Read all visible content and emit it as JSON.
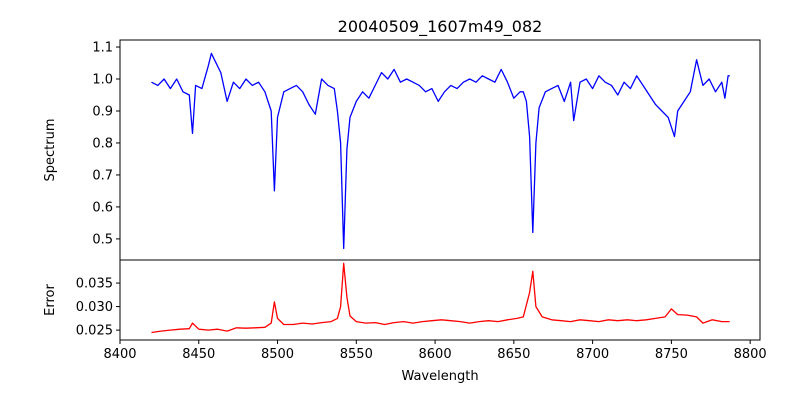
{
  "chart_data": [
    {
      "type": "line",
      "title": "20040509_1607m49_082",
      "xlabel": "",
      "ylabel": "Spectrum",
      "xlim": [
        8400,
        8806.25
      ],
      "ylim": [
        0.434,
        1.122
      ],
      "yticks": [
        0.5,
        0.6,
        0.7,
        0.8,
        0.9,
        1.0,
        1.1
      ],
      "ytick_labels": [
        "0.5",
        "0.6",
        "0.7",
        "0.8",
        "0.9",
        "1.0",
        "1.1"
      ],
      "grid": false,
      "color": "#0000ff",
      "series": [
        {
          "name": "Spectrum",
          "x": [
            8420,
            8424,
            8428,
            8432,
            8436,
            8440,
            8444,
            8446,
            8448,
            8452,
            8456,
            8458,
            8460,
            8464,
            8468,
            8472,
            8476,
            8480,
            8484,
            8488,
            8492,
            8496,
            8498,
            8500,
            8504,
            8508,
            8512,
            8516,
            8520,
            8524,
            8528,
            8532,
            8536,
            8538,
            8540,
            8542,
            8544,
            8546,
            8550,
            8554,
            8558,
            8562,
            8566,
            8570,
            8574,
            8578,
            8582,
            8586,
            8590,
            8594,
            8598,
            8602,
            8606,
            8610,
            8614,
            8618,
            8622,
            8626,
            8630,
            8634,
            8638,
            8642,
            8646,
            8650,
            8654,
            8656,
            8658,
            8660,
            8662,
            8664,
            8666,
            8670,
            8674,
            8678,
            8682,
            8686,
            8688,
            8692,
            8696,
            8700,
            8704,
            8708,
            8712,
            8716,
            8720,
            8724,
            8728,
            8732,
            8736,
            8740,
            8744,
            8748,
            8752,
            8754,
            8758,
            8762,
            8766,
            8770,
            8774,
            8778,
            8782,
            8784,
            8786,
            8787
          ],
          "y": [
            0.99,
            0.98,
            1.0,
            0.97,
            1.0,
            0.96,
            0.95,
            0.83,
            0.98,
            0.97,
            1.04,
            1.08,
            1.06,
            1.02,
            0.93,
            0.99,
            0.97,
            1.0,
            0.98,
            0.99,
            0.96,
            0.9,
            0.65,
            0.88,
            0.96,
            0.97,
            0.98,
            0.96,
            0.92,
            0.89,
            1.0,
            0.98,
            0.97,
            0.9,
            0.8,
            0.47,
            0.78,
            0.88,
            0.93,
            0.96,
            0.94,
            0.98,
            1.02,
            1.0,
            1.03,
            0.99,
            1.0,
            0.99,
            0.98,
            0.96,
            0.97,
            0.93,
            0.96,
            0.98,
            0.97,
            0.99,
            1.0,
            0.99,
            1.01,
            1.0,
            0.99,
            1.03,
            0.99,
            0.94,
            0.96,
            0.96,
            0.93,
            0.82,
            0.52,
            0.8,
            0.91,
            0.96,
            0.97,
            0.98,
            0.93,
            0.99,
            0.87,
            0.99,
            1.0,
            0.97,
            1.01,
            0.99,
            0.98,
            0.95,
            0.99,
            0.97,
            1.01,
            0.98,
            0.95,
            0.92,
            0.9,
            0.88,
            0.82,
            0.9,
            0.93,
            0.96,
            1.06,
            0.98,
            1.0,
            0.96,
            0.99,
            0.94,
            1.01,
            1.01
          ]
        }
      ]
    },
    {
      "type": "line",
      "title": "",
      "xlabel": "Wavelength",
      "ylabel": "Error",
      "xlim": [
        8400,
        8806.25
      ],
      "ylim": [
        0.0229,
        0.0399
      ],
      "xticks": [
        8400,
        8450,
        8500,
        8550,
        8600,
        8650,
        8700,
        8750,
        8800
      ],
      "xtick_labels": [
        "8400",
        "8450",
        "8500",
        "8550",
        "8600",
        "8650",
        "8700",
        "8750",
        "8800"
      ],
      "yticks": [
        0.025,
        0.03,
        0.035
      ],
      "ytick_labels": [
        "0.025",
        "0.030",
        "0.035"
      ],
      "grid": false,
      "color": "#ff0000",
      "series": [
        {
          "name": "Error",
          "x": [
            8420,
            8426,
            8432,
            8438,
            8444,
            8446,
            8450,
            8456,
            8462,
            8468,
            8474,
            8480,
            8486,
            8492,
            8496,
            8498,
            8500,
            8504,
            8510,
            8516,
            8522,
            8528,
            8534,
            8538,
            8540,
            8542,
            8544,
            8546,
            8550,
            8556,
            8562,
            8568,
            8574,
            8580,
            8586,
            8592,
            8598,
            8604,
            8610,
            8616,
            8622,
            8628,
            8634,
            8640,
            8646,
            8652,
            8656,
            8660,
            8662,
            8664,
            8668,
            8674,
            8680,
            8686,
            8692,
            8698,
            8704,
            8710,
            8716,
            8722,
            8728,
            8734,
            8740,
            8746,
            8750,
            8754,
            8760,
            8766,
            8770,
            8776,
            8782,
            8787
          ],
          "y": [
            0.0245,
            0.0248,
            0.025,
            0.0252,
            0.0253,
            0.0265,
            0.0252,
            0.025,
            0.0252,
            0.0248,
            0.0255,
            0.0254,
            0.0255,
            0.0256,
            0.0265,
            0.031,
            0.0275,
            0.0262,
            0.0262,
            0.0265,
            0.0263,
            0.0266,
            0.0268,
            0.0275,
            0.03,
            0.0392,
            0.032,
            0.028,
            0.0268,
            0.0265,
            0.0266,
            0.0262,
            0.0266,
            0.0268,
            0.0265,
            0.0268,
            0.027,
            0.0272,
            0.027,
            0.0268,
            0.0265,
            0.0268,
            0.027,
            0.0268,
            0.0272,
            0.0275,
            0.0278,
            0.033,
            0.0375,
            0.03,
            0.0278,
            0.0272,
            0.027,
            0.0268,
            0.0272,
            0.027,
            0.0268,
            0.0272,
            0.027,
            0.0272,
            0.027,
            0.0272,
            0.0275,
            0.0278,
            0.0295,
            0.0283,
            0.0282,
            0.0278,
            0.0265,
            0.0272,
            0.0268,
            0.0268
          ]
        }
      ]
    }
  ]
}
